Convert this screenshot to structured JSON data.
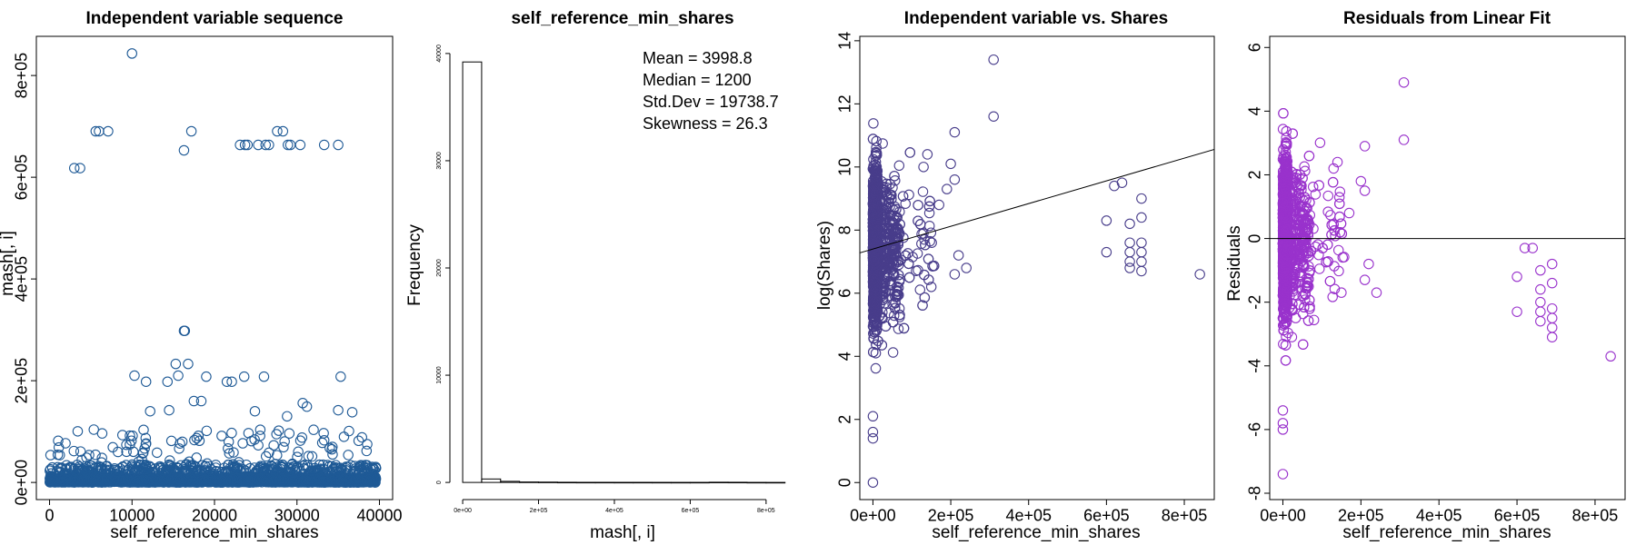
{
  "chart_data": [
    {
      "type": "scatter",
      "title": "Independent variable sequence",
      "xlabel": "self_reference_min_shares",
      "ylabel": "mash[, i]",
      "xlim": [
        0,
        40000
      ],
      "ylim": [
        0,
        843300
      ],
      "x_ticks": [
        0,
        10000,
        20000,
        30000,
        40000
      ],
      "x_tick_labels": [
        "0",
        "10000",
        "20000",
        "30000",
        "40000"
      ],
      "y_ticks": [
        0,
        200000,
        400000,
        600000,
        800000
      ],
      "y_tick_labels": [
        "0e+00",
        "2e+05",
        "4e+05",
        "6e+05",
        "8e+05"
      ],
      "point_color": "#1f5a96",
      "outliers": [
        {
          "x": 10000,
          "y": 843300
        },
        {
          "x": 3000,
          "y": 617900
        },
        {
          "x": 3700,
          "y": 617900
        },
        {
          "x": 5600,
          "y": 690400
        },
        {
          "x": 6000,
          "y": 690400
        },
        {
          "x": 7100,
          "y": 690400
        },
        {
          "x": 16300,
          "y": 652900
        },
        {
          "x": 17200,
          "y": 690400
        },
        {
          "x": 23100,
          "y": 663600
        },
        {
          "x": 23700,
          "y": 663600
        },
        {
          "x": 24000,
          "y": 663600
        },
        {
          "x": 25300,
          "y": 663600
        },
        {
          "x": 26200,
          "y": 663600
        },
        {
          "x": 26600,
          "y": 663600
        },
        {
          "x": 27600,
          "y": 690400
        },
        {
          "x": 28300,
          "y": 690400
        },
        {
          "x": 28900,
          "y": 663600
        },
        {
          "x": 29200,
          "y": 663600
        },
        {
          "x": 30400,
          "y": 663600
        },
        {
          "x": 33300,
          "y": 663600
        },
        {
          "x": 35000,
          "y": 663600
        },
        {
          "x": 16300,
          "y": 298000
        },
        {
          "x": 16400,
          "y": 298000
        },
        {
          "x": 15300,
          "y": 233000
        },
        {
          "x": 16800,
          "y": 233000
        },
        {
          "x": 10300,
          "y": 210000
        },
        {
          "x": 19000,
          "y": 208000
        },
        {
          "x": 21500,
          "y": 198000
        },
        {
          "x": 22100,
          "y": 198000
        },
        {
          "x": 23600,
          "y": 208000
        },
        {
          "x": 26000,
          "y": 208000
        },
        {
          "x": 35300,
          "y": 208000
        },
        {
          "x": 14300,
          "y": 198000
        },
        {
          "x": 15600,
          "y": 210000
        },
        {
          "x": 11700,
          "y": 198000
        },
        {
          "x": 30700,
          "y": 156000
        },
        {
          "x": 17500,
          "y": 160000
        },
        {
          "x": 18400,
          "y": 160000
        },
        {
          "x": 31200,
          "y": 149000
        },
        {
          "x": 12200,
          "y": 140000
        },
        {
          "x": 14500,
          "y": 142000
        },
        {
          "x": 24900,
          "y": 140000
        },
        {
          "x": 28800,
          "y": 130000
        },
        {
          "x": 35000,
          "y": 142000
        },
        {
          "x": 36700,
          "y": 138000
        }
      ],
      "dense_band": "0e+00 to 1e+05"
    },
    {
      "type": "bar",
      "subtype": "histogram",
      "title": "self_reference_min_shares",
      "xlabel": "mash[, i]",
      "ylabel": "Frequency",
      "xlim": [
        0,
        843300
      ],
      "ylim": [
        0,
        40000
      ],
      "x_ticks": [
        0,
        200000,
        400000,
        600000,
        800000
      ],
      "x_tick_labels": [
        "0e+00",
        "2e+05",
        "4e+05",
        "6e+05",
        "8e+05"
      ],
      "y_ticks": [
        0,
        10000,
        20000,
        30000,
        40000
      ],
      "y_tick_labels": [
        "0",
        "10000",
        "20000",
        "30000",
        "40000"
      ],
      "bin_width": 50000,
      "values": [
        39210,
        320,
        100,
        40,
        30,
        15,
        10,
        10,
        8,
        8,
        6,
        5,
        6,
        20,
        15,
        5,
        2
      ],
      "annotations": {
        "mean": "Mean = 3998.8",
        "median": "Median = 1200",
        "sd": "Std.Dev = 19738.7",
        "skew": "Skewness = 26.3"
      }
    },
    {
      "type": "scatter",
      "title": "Independent variable vs. Shares",
      "xlabel": "self_reference_min_shares",
      "ylabel": "log(Shares)",
      "xlim": [
        0,
        843300
      ],
      "ylim": [
        0,
        13.6
      ],
      "x_ticks": [
        0,
        200000,
        400000,
        600000,
        800000
      ],
      "x_tick_labels": [
        "0e+00",
        "2e+05",
        "4e+05",
        "6e+05",
        "8e+05"
      ],
      "y_ticks": [
        0,
        2,
        4,
        6,
        8,
        10,
        12,
        14
      ],
      "y_tick_labels": [
        "0",
        "2",
        "4",
        "6",
        "8",
        "10",
        "12",
        "14"
      ],
      "point_color": "#483d8b",
      "fit_line": {
        "intercept": 7.4,
        "slope": 3.6e-06
      },
      "outliers": [
        {
          "x": 0,
          "y": 0
        },
        {
          "x": 0,
          "y": 1.4
        },
        {
          "x": 0,
          "y": 1.6
        },
        {
          "x": 0,
          "y": 2.1
        },
        {
          "x": 310000,
          "y": 13.4
        },
        {
          "x": 310000,
          "y": 11.6
        },
        {
          "x": 210000,
          "y": 11.1
        },
        {
          "x": 200000,
          "y": 10.1
        },
        {
          "x": 210000,
          "y": 9.6
        },
        {
          "x": 190000,
          "y": 9.3
        },
        {
          "x": 240000,
          "y": 6.8
        },
        {
          "x": 210000,
          "y": 6.6
        },
        {
          "x": 220000,
          "y": 7.2
        },
        {
          "x": 840000,
          "y": 6.6
        },
        {
          "x": 600000,
          "y": 8.3
        },
        {
          "x": 620000,
          "y": 9.4
        },
        {
          "x": 640000,
          "y": 9.5
        },
        {
          "x": 600000,
          "y": 7.3
        },
        {
          "x": 660000,
          "y": 8.2
        },
        {
          "x": 660000,
          "y": 7.6
        },
        {
          "x": 660000,
          "y": 7.3
        },
        {
          "x": 660000,
          "y": 7.0
        },
        {
          "x": 660000,
          "y": 6.8
        },
        {
          "x": 690000,
          "y": 9.0
        },
        {
          "x": 690000,
          "y": 8.4
        },
        {
          "x": 690000,
          "y": 7.6
        },
        {
          "x": 690000,
          "y": 7.3
        },
        {
          "x": 690000,
          "y": 7.0
        },
        {
          "x": 690000,
          "y": 6.7
        },
        {
          "x": 140000,
          "y": 10.4
        },
        {
          "x": 130000,
          "y": 10.0
        },
        {
          "x": 170000,
          "y": 8.8
        },
        {
          "x": 150000,
          "y": 6.2
        }
      ],
      "dense_band": "0e+00 to 1.6e+05"
    },
    {
      "type": "scatter",
      "title": "Residuals from Linear Fit",
      "xlabel": "self_reference_min_shares",
      "ylabel": "Residuals",
      "xlim": [
        0,
        843300
      ],
      "ylim": [
        -8,
        6.3
      ],
      "x_ticks": [
        0,
        200000,
        400000,
        600000,
        800000
      ],
      "x_tick_labels": [
        "0e+00",
        "2e+05",
        "4e+05",
        "6e+05",
        "8e+05"
      ],
      "y_ticks": [
        -8,
        -6,
        -4,
        -2,
        0,
        2,
        4,
        6
      ],
      "y_tick_labels": [
        "-8",
        "-6",
        "-4",
        "-2",
        "0",
        "2",
        "4",
        "6"
      ],
      "point_color": "#9932cc",
      "reference_line": 0,
      "outliers": [
        {
          "x": 0,
          "y": -7.4
        },
        {
          "x": 0,
          "y": -6.0
        },
        {
          "x": 0,
          "y": -5.8
        },
        {
          "x": 0,
          "y": -5.4
        },
        {
          "x": 310000,
          "y": 4.9
        },
        {
          "x": 310000,
          "y": 3.1
        },
        {
          "x": 210000,
          "y": 2.9
        },
        {
          "x": 200000,
          "y": 1.8
        },
        {
          "x": 210000,
          "y": 1.5
        },
        {
          "x": 240000,
          "y": -1.7
        },
        {
          "x": 210000,
          "y": -1.3
        },
        {
          "x": 220000,
          "y": -0.8
        },
        {
          "x": 840000,
          "y": -3.7
        },
        {
          "x": 600000,
          "y": -1.2
        },
        {
          "x": 620000,
          "y": -0.3
        },
        {
          "x": 640000,
          "y": -0.3
        },
        {
          "x": 600000,
          "y": -2.3
        },
        {
          "x": 660000,
          "y": -1.0
        },
        {
          "x": 660000,
          "y": -1.6
        },
        {
          "x": 660000,
          "y": -2.0
        },
        {
          "x": 660000,
          "y": -2.3
        },
        {
          "x": 660000,
          "y": -2.6
        },
        {
          "x": 690000,
          "y": -0.8
        },
        {
          "x": 690000,
          "y": -1.4
        },
        {
          "x": 690000,
          "y": -2.2
        },
        {
          "x": 690000,
          "y": -2.5
        },
        {
          "x": 690000,
          "y": -2.8
        },
        {
          "x": 690000,
          "y": -3.1
        },
        {
          "x": 140000,
          "y": 2.4
        },
        {
          "x": 130000,
          "y": 2.2
        },
        {
          "x": 170000,
          "y": 0.8
        },
        {
          "x": 150000,
          "y": -1.7
        }
      ],
      "dense_band": "0e+00 to 1.6e+05"
    }
  ]
}
